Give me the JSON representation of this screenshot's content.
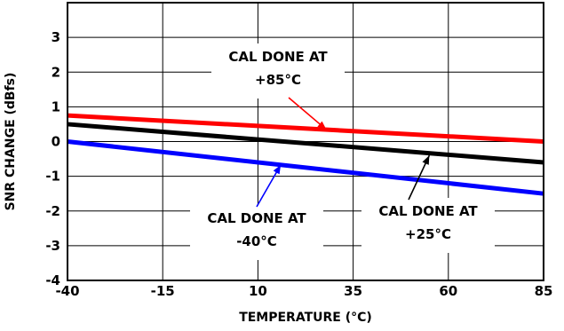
{
  "chart_data": {
    "type": "line",
    "title": "",
    "xlabel": "TEMPERATURE (°C)",
    "ylabel": "SNR CHANGE (dBfs)",
    "xlim": [
      -40,
      85
    ],
    "ylim": [
      -4,
      4
    ],
    "xticks": [
      -40,
      -15,
      10,
      35,
      60,
      85
    ],
    "yticks": [
      -4,
      -3,
      -2,
      -1,
      0,
      1,
      2,
      3
    ],
    "grid": true,
    "series": [
      {
        "color": "#ff0000",
        "x": [
          -40,
          85
        ],
        "y": [
          0.75,
          0.0
        ]
      },
      {
        "color": "#000000",
        "x": [
          -40,
          85
        ],
        "y": [
          0.5,
          -0.6
        ]
      },
      {
        "color": "#0000ff",
        "x": [
          -40,
          85
        ],
        "y": [
          0.0,
          -1.5
        ]
      }
    ],
    "annotations": [
      {
        "lines": [
          "CAL DONE AT",
          "+85°C"
        ],
        "arrow_to": {
          "x": 28,
          "y": 0.34
        },
        "color": "#ff0000"
      },
      {
        "lines": [
          "CAL DONE AT",
          "-40°C"
        ],
        "arrow_to": {
          "x": 16,
          "y": -0.67
        },
        "color": "#0000ff"
      },
      {
        "lines": [
          "CAL DONE AT",
          "+25°C"
        ],
        "arrow_to": {
          "x": 55,
          "y": -0.4
        },
        "color": "#000000"
      }
    ]
  }
}
